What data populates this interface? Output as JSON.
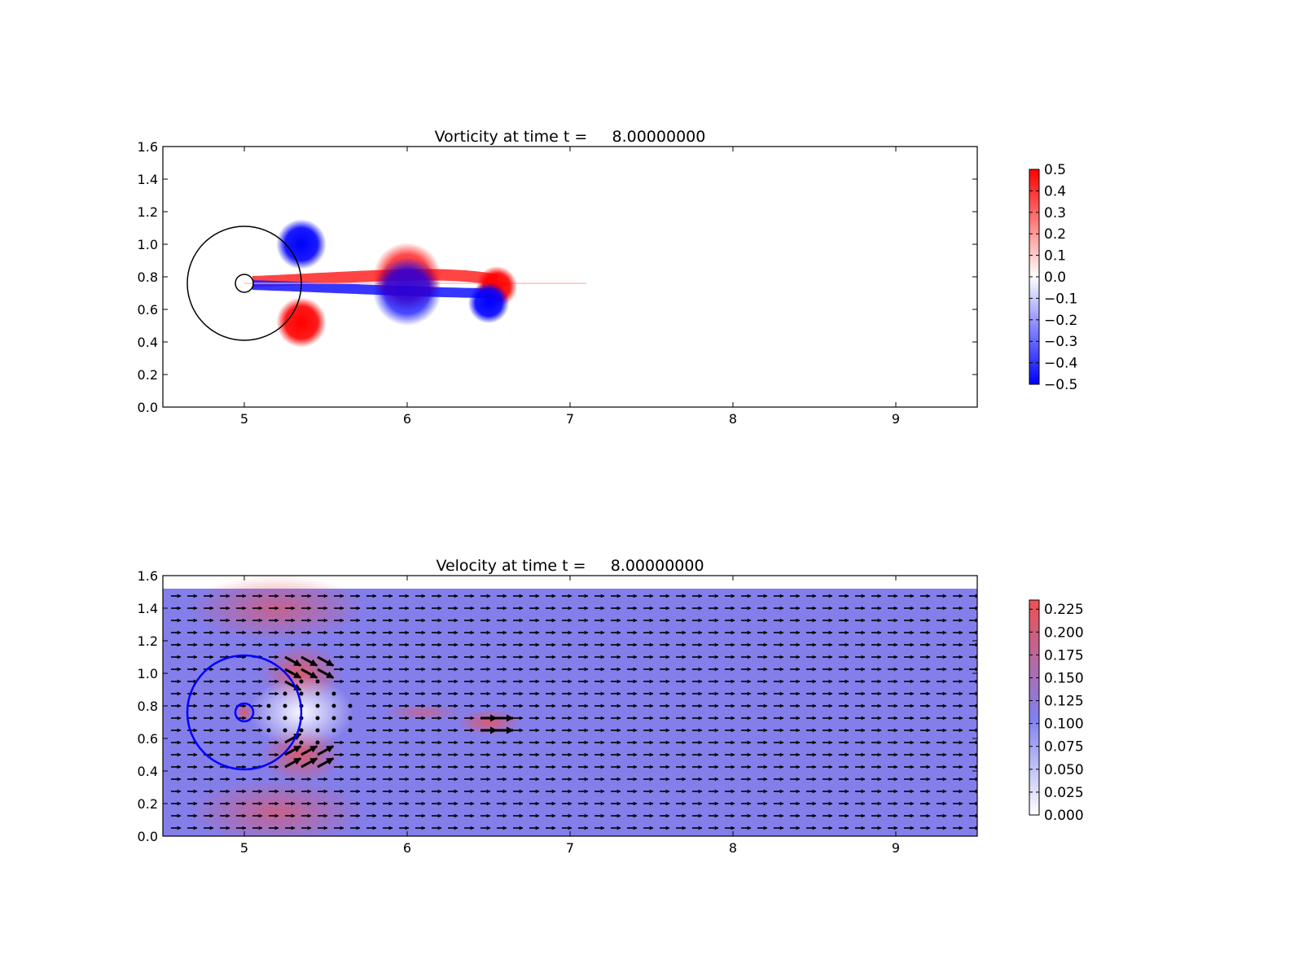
{
  "chart_data": [
    {
      "type": "heatmap",
      "title": "Vorticity at time t =     8.00000000",
      "xlim": [
        4.5,
        9.5
      ],
      "ylim": [
        0.0,
        1.6
      ],
      "x_ticks": [
        "5",
        "6",
        "7",
        "8",
        "9"
      ],
      "y_ticks": [
        "0.0",
        "0.2",
        "0.4",
        "0.6",
        "0.8",
        "1.0",
        "1.2",
        "1.4",
        "1.6"
      ],
      "colormap": "bwr",
      "color_low": "#0000ff",
      "color_mid": "#ffffff",
      "color_high": "#ff0000",
      "clim": [
        -0.5,
        0.5
      ],
      "colorbar_ticks": [
        "0.5",
        "0.4",
        "0.3",
        "0.2",
        "0.1",
        "0.0",
        "−0.1",
        "−0.2",
        "−0.3",
        "−0.4",
        "−0.5"
      ],
      "circles": [
        {
          "center": [
            5.0,
            0.76
          ],
          "radius": 0.35,
          "color": "#000000"
        },
        {
          "center": [
            5.0,
            0.76
          ],
          "radius": 0.055,
          "color": "#000000"
        }
      ],
      "blobs": [
        {
          "center": [
            5.35,
            1.0
          ],
          "radius": 0.11,
          "value": -0.5
        },
        {
          "center": [
            5.35,
            0.52
          ],
          "radius": 0.11,
          "value": 0.5
        },
        {
          "center": [
            6.55,
            0.74
          ],
          "radius": 0.09,
          "value": 0.5
        },
        {
          "center": [
            6.5,
            0.64
          ],
          "radius": 0.09,
          "value": -0.5
        },
        {
          "center": [
            6.0,
            0.8
          ],
          "radius": 0.15,
          "value": 0.4
        },
        {
          "center": [
            6.0,
            0.71
          ],
          "radius": 0.15,
          "value": -0.4
        }
      ],
      "grid": false
    },
    {
      "type": "heatmap",
      "title": "Velocity at time t =     8.00000000",
      "xlim": [
        4.5,
        9.5
      ],
      "ylim": [
        0.0,
        1.6
      ],
      "x_ticks": [
        "5",
        "6",
        "7",
        "8",
        "9"
      ],
      "y_ticks": [
        "0.0",
        "0.2",
        "0.4",
        "0.6",
        "0.8",
        "1.0",
        "1.2",
        "1.4",
        "1.6"
      ],
      "colormap": "white-blue-red",
      "color_low": "#ffffff",
      "color_mid": "#8080f0",
      "color_high": "#f05050",
      "clim": [
        0.0,
        0.235
      ],
      "background_speed": 0.11,
      "colorbar_ticks": [
        "0.225",
        "0.200",
        "0.175",
        "0.150",
        "0.125",
        "0.100",
        "0.075",
        "0.050",
        "0.025",
        "0.000"
      ],
      "colorbar_values": [
        0.225,
        0.2,
        0.175,
        0.15,
        0.125,
        0.1,
        0.075,
        0.05,
        0.025,
        0.0
      ],
      "circles": [
        {
          "center": [
            5.0,
            0.76
          ],
          "radius": 0.35,
          "color": "#0000ff"
        },
        {
          "center": [
            5.0,
            0.76
          ],
          "radius": 0.055,
          "color": "#0000ff"
        }
      ],
      "quiver": true,
      "grid": false
    }
  ]
}
